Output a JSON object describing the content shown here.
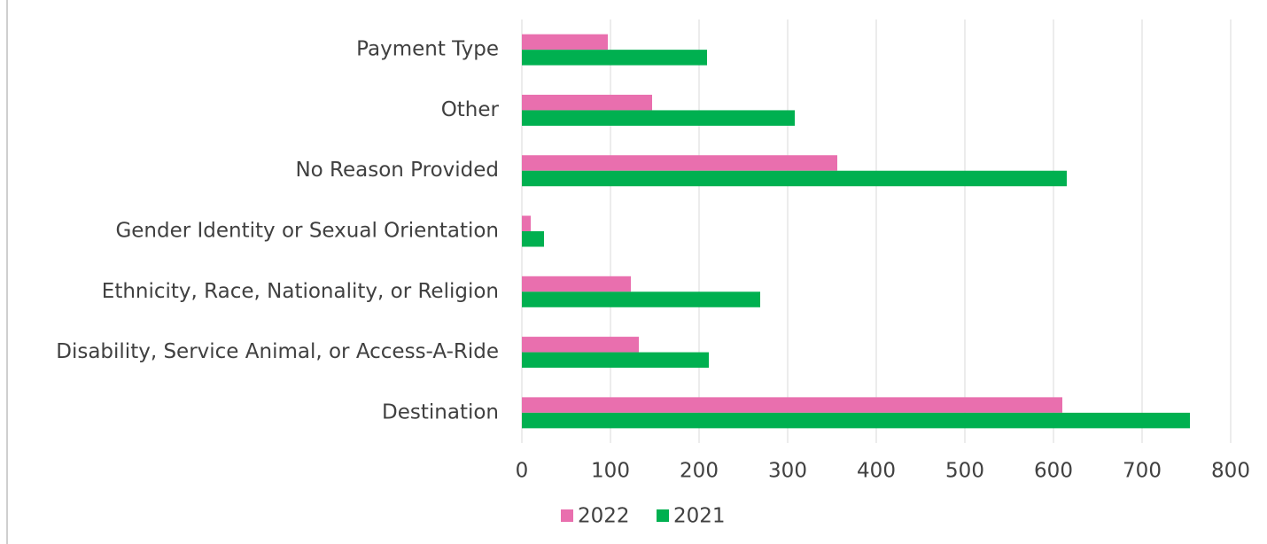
{
  "chart_data": {
    "type": "barh",
    "categories": [
      "Payment Type",
      "Other",
      "No Reason Provided",
      "Gender Identity or Sexual Orientation",
      "Ethnicity, Race, Nationality, or Religion",
      "Disability, Service Animal, or Access-A-Ride",
      "Destination"
    ],
    "series": [
      {
        "name": "2022",
        "color": "#e96fae",
        "values": [
          97,
          147,
          356,
          10,
          123,
          132,
          610
        ]
      },
      {
        "name": "2021",
        "color": "#00b050",
        "values": [
          209,
          308,
          615,
          25,
          269,
          211,
          754
        ]
      }
    ],
    "xlim": [
      0,
      800
    ],
    "xticks": [
      0,
      100,
      200,
      300,
      400,
      500,
      600,
      700,
      800
    ],
    "grid": true,
    "legend": "bottom"
  }
}
